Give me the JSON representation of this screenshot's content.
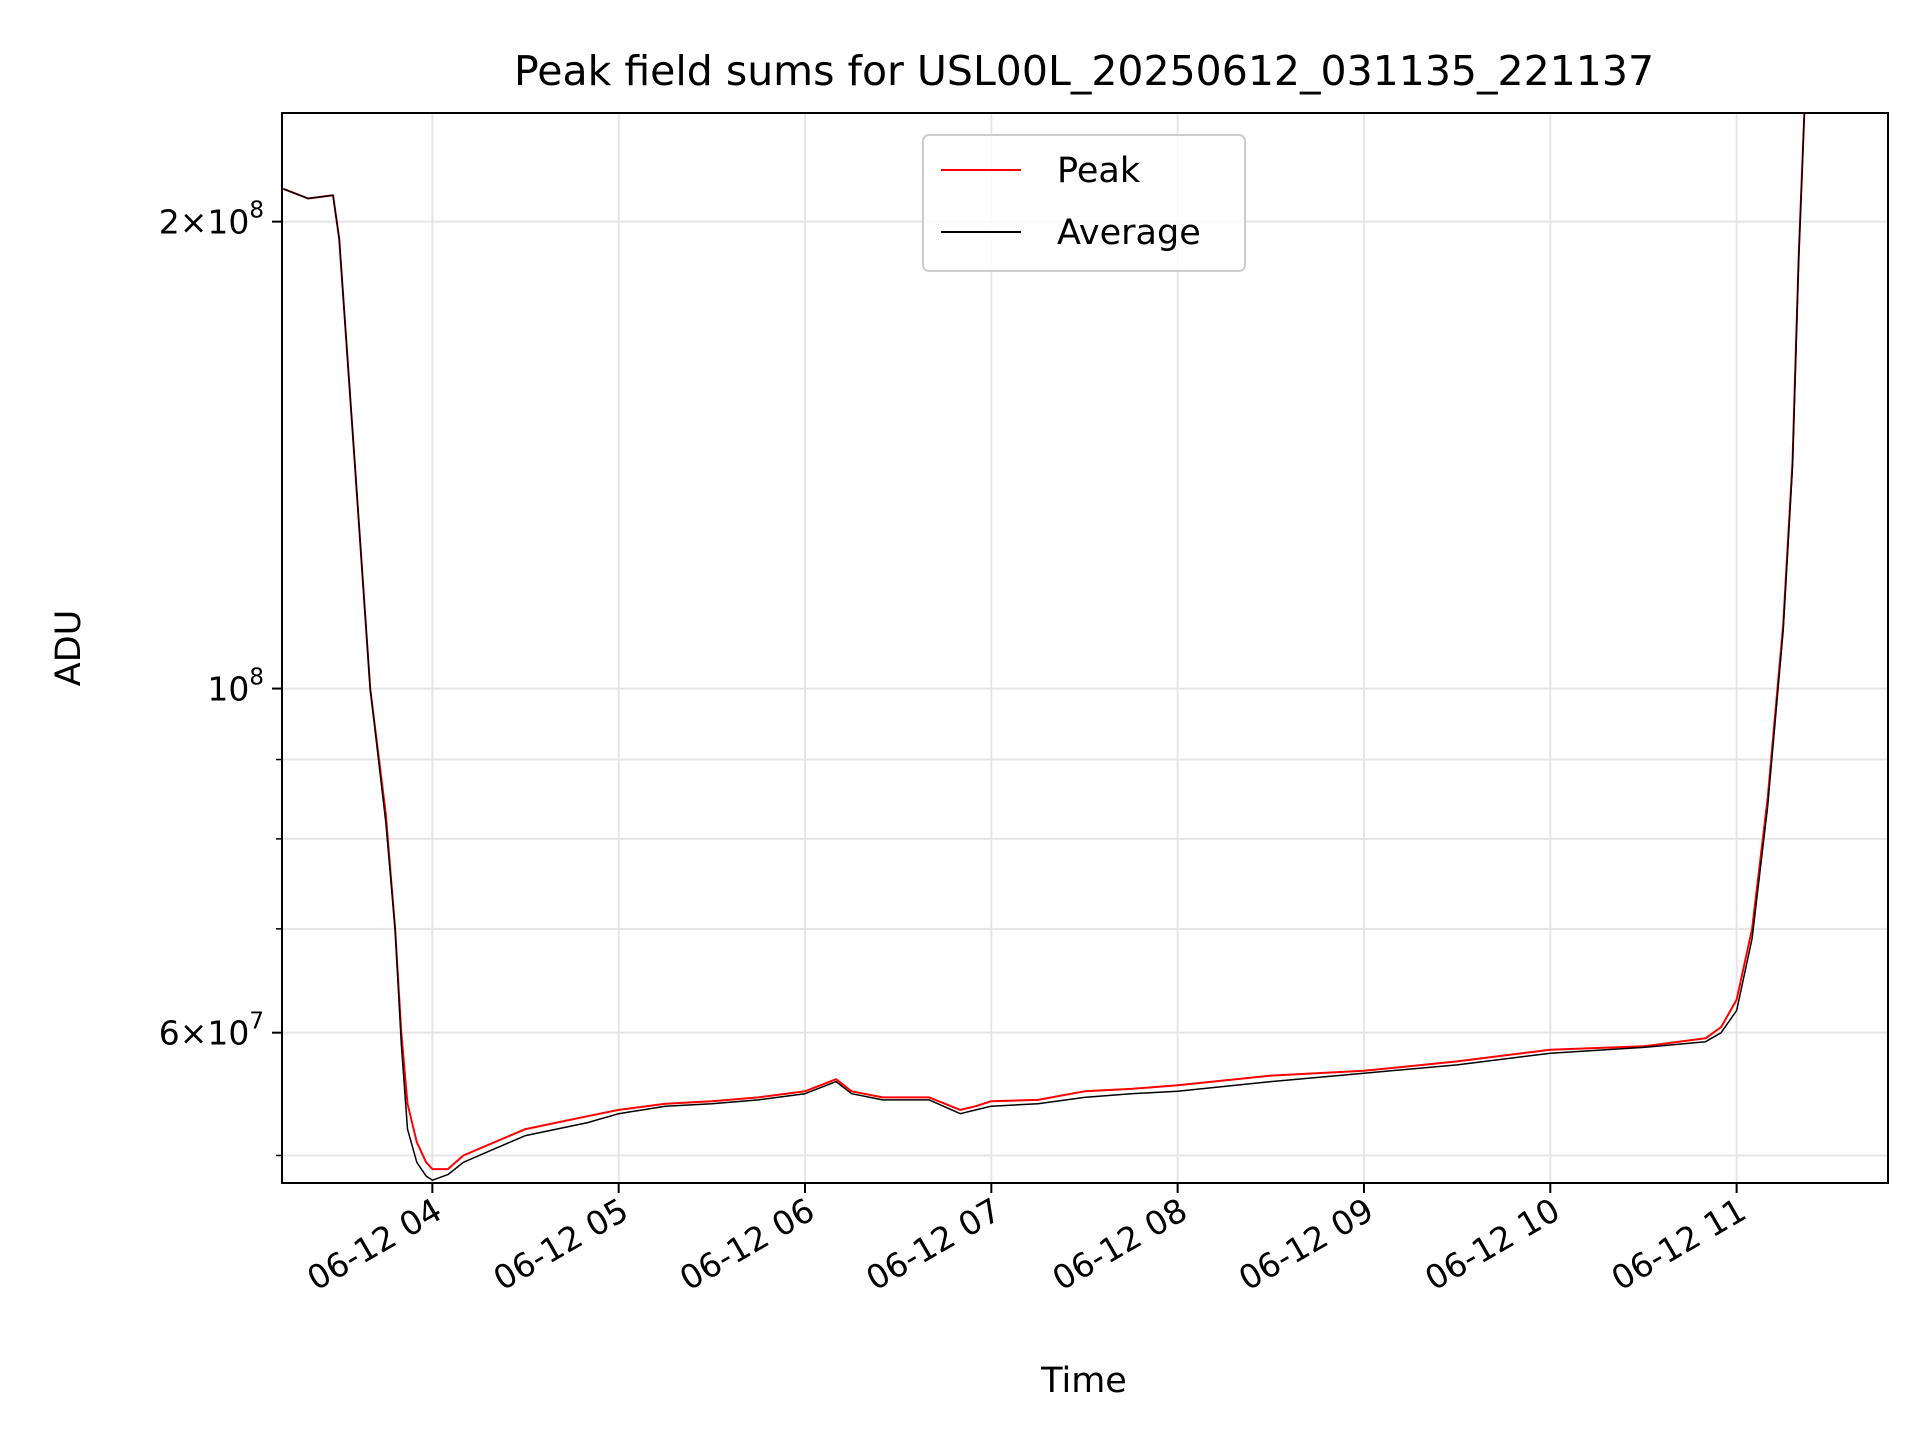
{
  "chart_data": {
    "type": "line",
    "title": "Peak field sums for USL00L_20250612_031135_221137",
    "xlabel": "Time",
    "ylabel": "ADU",
    "x_axis": {
      "type": "date",
      "range": [
        "2025-06-12 03:11:35",
        "2025-06-12 11:48:45"
      ],
      "ticks": [
        {
          "value": "2025-06-12 04:00",
          "label": "06-12 04"
        },
        {
          "value": "2025-06-12 05:00",
          "label": "06-12 05"
        },
        {
          "value": "2025-06-12 06:00",
          "label": "06-12 06"
        },
        {
          "value": "2025-06-12 07:00",
          "label": "06-12 07"
        },
        {
          "value": "2025-06-12 08:00",
          "label": "06-12 08"
        },
        {
          "value": "2025-06-12 09:00",
          "label": "06-12 09"
        },
        {
          "value": "2025-06-12 10:00",
          "label": "06-12 10"
        },
        {
          "value": "2025-06-12 11:00",
          "label": "06-12 11"
        }
      ],
      "tick_rotation": 30
    },
    "y_axis": {
      "scale": "log",
      "range": [
        48000000,
        235000000
      ],
      "major_ticks": [
        {
          "value": 60000000,
          "mantissa": "6",
          "exponent": "7"
        },
        {
          "value": 100000000,
          "mantissa": "",
          "exponent": "8"
        },
        {
          "value": 200000000,
          "mantissa": "2",
          "exponent": "8"
        }
      ],
      "minor_ticks": [
        50000000,
        70000000,
        80000000,
        90000000
      ]
    },
    "grid": true,
    "legend": {
      "placement": "upper center",
      "entries": [
        "Peak",
        "Average"
      ]
    },
    "series": [
      {
        "name": "Peak",
        "color": "#ff0000",
        "x": [
          "2025-06-12 03:12",
          "2025-06-12 03:20",
          "2025-06-12 03:28",
          "2025-06-12 03:30",
          "2025-06-12 03:35",
          "2025-06-12 03:40",
          "2025-06-12 03:45",
          "2025-06-12 03:48",
          "2025-06-12 03:50",
          "2025-06-12 03:52",
          "2025-06-12 03:55",
          "2025-06-12 03:58",
          "2025-06-12 04:00",
          "2025-06-12 04:05",
          "2025-06-12 04:10",
          "2025-06-12 04:20",
          "2025-06-12 04:30",
          "2025-06-12 04:40",
          "2025-06-12 04:50",
          "2025-06-12 05:00",
          "2025-06-12 05:15",
          "2025-06-12 05:30",
          "2025-06-12 05:45",
          "2025-06-12 06:00",
          "2025-06-12 06:10",
          "2025-06-12 06:15",
          "2025-06-12 06:25",
          "2025-06-12 06:40",
          "2025-06-12 06:50",
          "2025-06-12 06:55",
          "2025-06-12 07:00",
          "2025-06-12 07:15",
          "2025-06-12 07:30",
          "2025-06-12 07:45",
          "2025-06-12 08:00",
          "2025-06-12 08:30",
          "2025-06-12 09:00",
          "2025-06-12 09:30",
          "2025-06-12 10:00",
          "2025-06-12 10:30",
          "2025-06-12 10:50",
          "2025-06-12 10:55",
          "2025-06-12 11:00",
          "2025-06-12 11:05",
          "2025-06-12 11:10",
          "2025-06-12 11:15",
          "2025-06-12 11:18",
          "2025-06-12 11:20",
          "2025-06-12 11:22"
        ],
        "values": [
          210000000,
          207000000,
          208000000,
          195000000,
          140000000,
          100000000,
          83000000,
          70000000,
          60000000,
          54000000,
          51000000,
          49500000,
          49000000,
          49000000,
          50000000,
          51000000,
          52000000,
          52500000,
          53000000,
          53500000,
          54000000,
          54200000,
          54500000,
          55000000,
          56000000,
          55000000,
          54500000,
          54500000,
          53500000,
          53800000,
          54200000,
          54300000,
          55000000,
          55200000,
          55500000,
          56300000,
          56700000,
          57500000,
          58500000,
          58800000,
          59500000,
          60500000,
          63000000,
          70000000,
          85000000,
          110000000,
          140000000,
          190000000,
          240000000
        ]
      },
      {
        "name": "Average",
        "color": "#000000",
        "x": [
          "2025-06-12 03:12",
          "2025-06-12 03:20",
          "2025-06-12 03:28",
          "2025-06-12 03:30",
          "2025-06-12 03:35",
          "2025-06-12 03:40",
          "2025-06-12 03:45",
          "2025-06-12 03:48",
          "2025-06-12 03:50",
          "2025-06-12 03:52",
          "2025-06-12 03:55",
          "2025-06-12 03:58",
          "2025-06-12 04:00",
          "2025-06-12 04:05",
          "2025-06-12 04:10",
          "2025-06-12 04:20",
          "2025-06-12 04:30",
          "2025-06-12 04:40",
          "2025-06-12 04:50",
          "2025-06-12 05:00",
          "2025-06-12 05:15",
          "2025-06-12 05:30",
          "2025-06-12 05:45",
          "2025-06-12 06:00",
          "2025-06-12 06:10",
          "2025-06-12 06:15",
          "2025-06-12 06:25",
          "2025-06-12 06:40",
          "2025-06-12 06:50",
          "2025-06-12 06:55",
          "2025-06-12 07:00",
          "2025-06-12 07:15",
          "2025-06-12 07:30",
          "2025-06-12 07:45",
          "2025-06-12 08:00",
          "2025-06-12 08:30",
          "2025-06-12 09:00",
          "2025-06-12 09:30",
          "2025-06-12 10:00",
          "2025-06-12 10:30",
          "2025-06-12 10:50",
          "2025-06-12 10:55",
          "2025-06-12 11:00",
          "2025-06-12 11:05",
          "2025-06-12 11:10",
          "2025-06-12 11:15",
          "2025-06-12 11:18",
          "2025-06-12 11:20",
          "2025-06-12 11:22"
        ],
        "values": [
          210000000,
          207000000,
          208000000,
          195000000,
          140000000,
          100000000,
          82000000,
          70000000,
          59000000,
          52000000,
          49500000,
          48500000,
          48200000,
          48600000,
          49500000,
          50500000,
          51500000,
          52000000,
          52500000,
          53200000,
          53800000,
          54000000,
          54300000,
          54800000,
          55800000,
          54800000,
          54300000,
          54300000,
          53200000,
          53500000,
          53800000,
          54000000,
          54500000,
          54800000,
          55000000,
          55800000,
          56500000,
          57200000,
          58200000,
          58700000,
          59200000,
          60000000,
          62000000,
          69000000,
          84000000,
          109000000,
          139000000,
          189000000,
          240000000
        ]
      }
    ]
  }
}
